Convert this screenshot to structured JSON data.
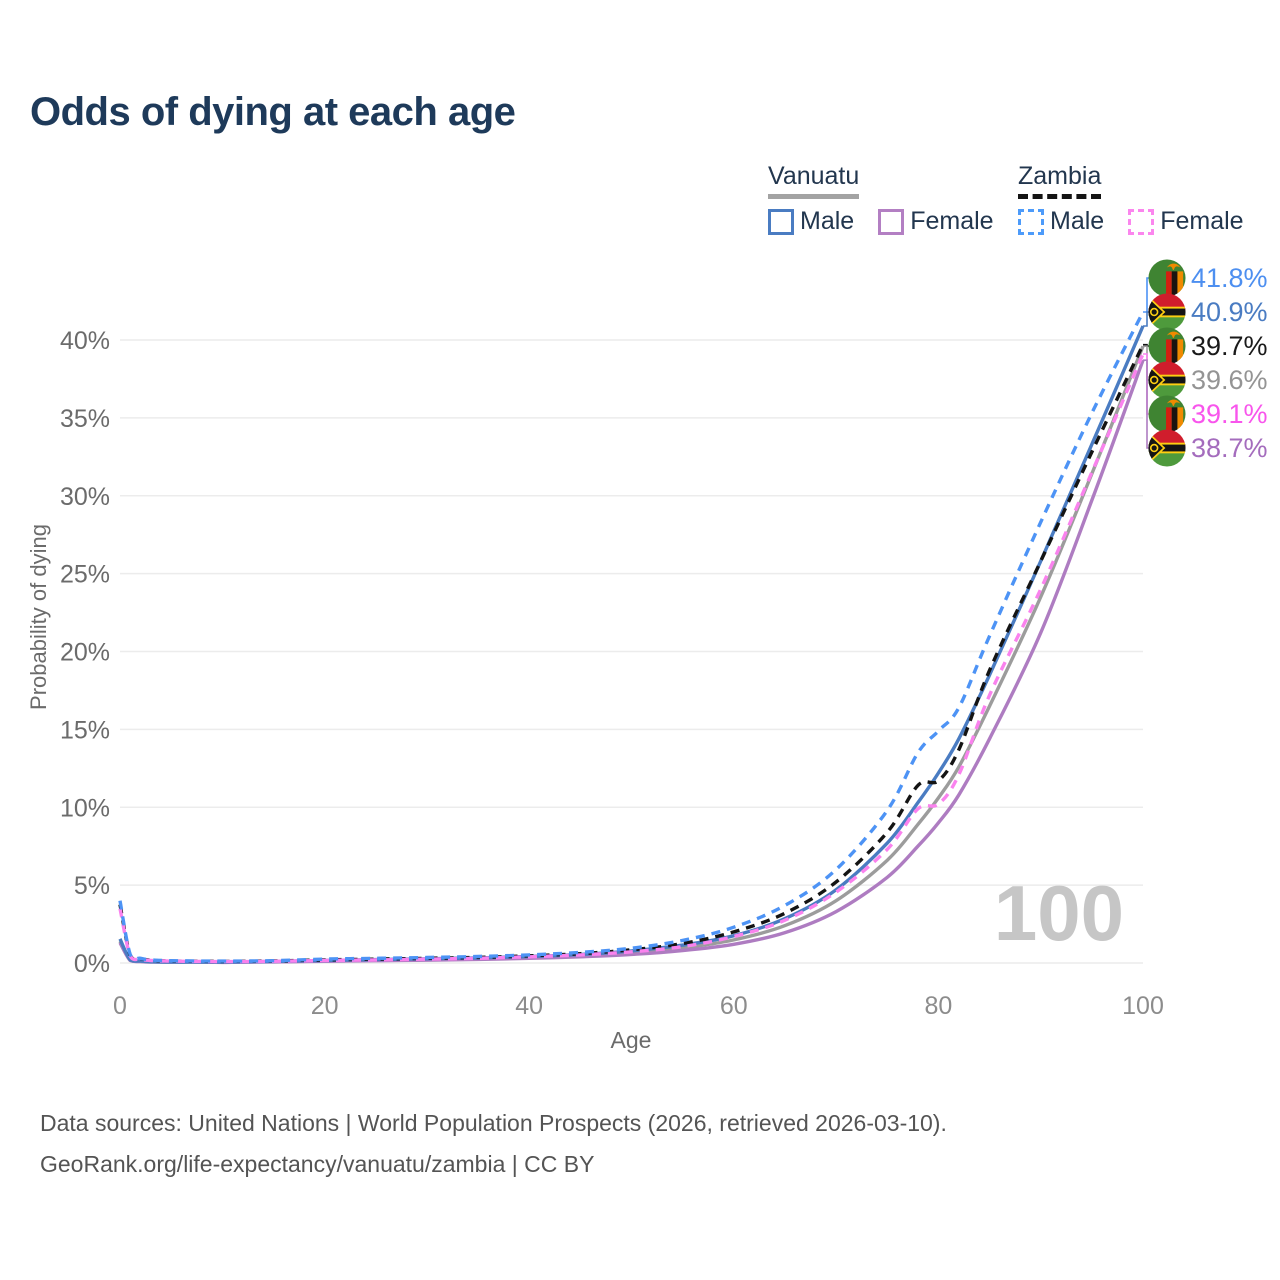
{
  "title": "Odds of dying at each age",
  "legend": {
    "groups": [
      {
        "name": "Vanuatu",
        "line": {
          "style": "solid",
          "color": "#a3a3a3"
        },
        "items": [
          {
            "label": "Male",
            "color": "#4a7cc2",
            "dash": false
          },
          {
            "label": "Female",
            "color": "#b37fc3",
            "dash": false
          }
        ]
      },
      {
        "name": "Zambia",
        "line": {
          "style": "dashed",
          "color": "#141414"
        },
        "items": [
          {
            "label": "Male",
            "color": "#4d9bfa",
            "dash": true
          },
          {
            "label": "Female",
            "color": "#fb86ee",
            "dash": true
          }
        ]
      }
    ]
  },
  "chart_data": {
    "type": "line",
    "title": "Odds of dying at each age",
    "xlabel": "Age",
    "ylabel": "Probability of dying",
    "x_range": [
      0,
      100
    ],
    "y_range_percent": [
      0,
      43
    ],
    "x_ticks": [
      0,
      20,
      40,
      60,
      80,
      100
    ],
    "y_tick_labels": [
      "0%",
      "5%",
      "10%",
      "15%",
      "20%",
      "25%",
      "30%",
      "35%",
      "40%"
    ],
    "grid": "horizontal",
    "watermark": "100",
    "ages": [
      0,
      1,
      2,
      3,
      5,
      10,
      15,
      20,
      25,
      30,
      35,
      40,
      45,
      50,
      55,
      60,
      65,
      70,
      75,
      78,
      80,
      82,
      85,
      90,
      95,
      100
    ],
    "series": [
      {
        "name": "Vanuatu Both sexes",
        "flag": "vanuatu",
        "color": "#9c9c9c",
        "dash": false,
        "end_label": "39.6%",
        "label_color": "#949494",
        "x": [
          0,
          1,
          2,
          3,
          5,
          10,
          15,
          20,
          25,
          30,
          35,
          40,
          45,
          50,
          55,
          60,
          65,
          70,
          75,
          78,
          80,
          82,
          85,
          90,
          95,
          100
        ],
        "y": [
          1.4,
          0.18,
          0.1,
          0.07,
          0.055,
          0.045,
          0.08,
          0.13,
          0.18,
          0.22,
          0.28,
          0.36,
          0.47,
          0.66,
          0.97,
          1.48,
          2.4,
          4.0,
          6.6,
          8.9,
          10.6,
          12.6,
          16.5,
          23.5,
          31.4,
          39.6
        ]
      },
      {
        "name": "Vanuatu Female",
        "flag": "vanuatu",
        "color": "#ae7cc1",
        "dash": false,
        "end_label": "38.7%",
        "label_color": "#a46cbd",
        "x": [
          0,
          1,
          2,
          3,
          5,
          10,
          15,
          20,
          25,
          30,
          35,
          40,
          45,
          50,
          55,
          60,
          65,
          70,
          75,
          78,
          80,
          82,
          85,
          90,
          95,
          100
        ],
        "y": [
          1.3,
          0.16,
          0.09,
          0.06,
          0.05,
          0.04,
          0.07,
          0.11,
          0.15,
          0.18,
          0.23,
          0.3,
          0.4,
          0.55,
          0.8,
          1.2,
          1.95,
          3.3,
          5.5,
          7.5,
          9.0,
          10.8,
          14.4,
          21.2,
          29.7,
          38.7
        ]
      },
      {
        "name": "Vanuatu Male",
        "flag": "vanuatu",
        "color": "#4a7cc2",
        "dash": false,
        "end_label": "40.9%",
        "label_color": "#4a7cc2",
        "x": [
          0,
          1,
          2,
          3,
          5,
          10,
          15,
          20,
          25,
          30,
          35,
          40,
          45,
          50,
          55,
          60,
          65,
          70,
          75,
          78,
          80,
          82,
          85,
          90,
          95,
          100
        ],
        "y": [
          1.55,
          0.2,
          0.12,
          0.08,
          0.06,
          0.05,
          0.1,
          0.16,
          0.22,
          0.27,
          0.33,
          0.42,
          0.55,
          0.78,
          1.15,
          1.75,
          2.85,
          4.7,
          7.7,
          10.3,
          12.2,
          14.4,
          18.5,
          25.8,
          33.3,
          40.9
        ]
      },
      {
        "name": "Zambia Both sexes",
        "flag": "zambia",
        "color": "#141414",
        "dash": true,
        "end_label": "39.7%",
        "label_color": "#1a1a1a",
        "x": [
          0,
          1,
          2,
          3,
          5,
          10,
          15,
          20,
          25,
          30,
          35,
          40,
          45,
          50,
          55,
          60,
          65,
          70,
          75,
          78,
          80,
          82,
          85,
          90,
          95,
          100
        ],
        "y": [
          3.75,
          0.5,
          0.28,
          0.18,
          0.13,
          0.1,
          0.13,
          0.2,
          0.25,
          0.3,
          0.36,
          0.46,
          0.6,
          0.85,
          1.25,
          2.0,
          3.2,
          5.2,
          8.4,
          11.4,
          11.7,
          13.7,
          18.8,
          25.8,
          32.8,
          39.7
        ]
      },
      {
        "name": "Zambia Female",
        "flag": "zambia",
        "color": "#fa82ee",
        "dash": true,
        "end_label": "39.1%",
        "label_color": "#f855ec",
        "x": [
          0,
          1,
          2,
          3,
          5,
          10,
          15,
          20,
          25,
          30,
          35,
          40,
          45,
          50,
          55,
          60,
          65,
          70,
          75,
          78,
          80,
          82,
          85,
          90,
          95,
          100
        ],
        "y": [
          3.5,
          0.45,
          0.25,
          0.16,
          0.12,
          0.09,
          0.11,
          0.16,
          0.2,
          0.25,
          0.3,
          0.4,
          0.52,
          0.72,
          1.05,
          1.7,
          2.75,
          4.55,
          7.3,
          9.9,
          10.2,
          12.1,
          17.2,
          24.0,
          31.5,
          39.1
        ]
      },
      {
        "name": "Zambia Male",
        "flag": "zambia",
        "color": "#4d93f5",
        "dash": true,
        "end_label": "41.8%",
        "label_color": "#4d8ff0",
        "x": [
          0,
          1,
          2,
          3,
          5,
          10,
          15,
          20,
          25,
          30,
          35,
          40,
          45,
          50,
          55,
          60,
          65,
          70,
          75,
          78,
          80,
          82,
          85,
          90,
          95,
          100
        ],
        "y": [
          4.0,
          0.55,
          0.3,
          0.2,
          0.15,
          0.12,
          0.15,
          0.25,
          0.3,
          0.35,
          0.42,
          0.52,
          0.68,
          0.95,
          1.45,
          2.3,
          3.7,
          6.0,
          9.8,
          13.5,
          14.9,
          16.4,
          21.0,
          28.3,
          35.3,
          41.8
        ]
      }
    ]
  },
  "footer": {
    "line1": "Data sources: United Nations | World Population Prospects (2026, retrieved 2026-03-10).",
    "line2": "GeoRank.org/life-expectancy/vanuatu/zambia | CC BY"
  }
}
